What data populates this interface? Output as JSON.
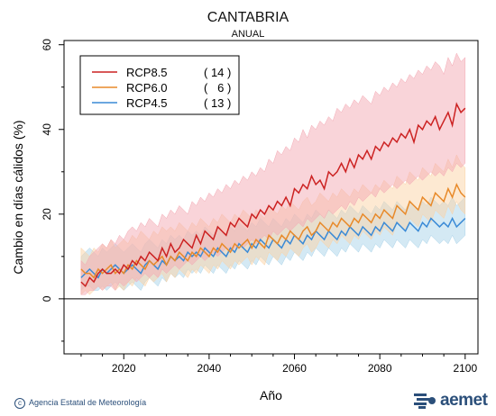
{
  "chart_data": {
    "type": "line",
    "title": "CANTABRIA",
    "subtitle": "ANUAL",
    "xlabel": "Año",
    "ylabel": "Cambio en días cálidos (%)",
    "xlim": [
      2006,
      2103
    ],
    "ylim": [
      -13,
      61
    ],
    "xticks": [
      2020,
      2040,
      2060,
      2080,
      2100
    ],
    "yticks": [
      0,
      20,
      40,
      60
    ],
    "zero_line": true,
    "legend_position": "top-left",
    "x": [
      2010,
      2011,
      2012,
      2013,
      2014,
      2015,
      2016,
      2017,
      2018,
      2019,
      2020,
      2021,
      2022,
      2023,
      2024,
      2025,
      2026,
      2027,
      2028,
      2029,
      2030,
      2031,
      2032,
      2033,
      2034,
      2035,
      2036,
      2037,
      2038,
      2039,
      2040,
      2041,
      2042,
      2043,
      2044,
      2045,
      2046,
      2047,
      2048,
      2049,
      2050,
      2051,
      2052,
      2053,
      2054,
      2055,
      2056,
      2057,
      2058,
      2059,
      2060,
      2061,
      2062,
      2063,
      2064,
      2065,
      2066,
      2067,
      2068,
      2069,
      2070,
      2071,
      2072,
      2073,
      2074,
      2075,
      2076,
      2077,
      2078,
      2079,
      2080,
      2081,
      2082,
      2083,
      2084,
      2085,
      2086,
      2087,
      2088,
      2089,
      2090,
      2091,
      2092,
      2093,
      2094,
      2095,
      2096,
      2097,
      2098,
      2099,
      2100
    ],
    "series": [
      {
        "name": "RCP8.5",
        "count": "( 14 )",
        "color": "#cc2222",
        "band_color": "#f4a9b4",
        "values": [
          4,
          3,
          5,
          4,
          6,
          7,
          6,
          6,
          7,
          6,
          8,
          7,
          9,
          8,
          10,
          9,
          11,
          10,
          9,
          12,
          10,
          13,
          11,
          12,
          14,
          13,
          12,
          15,
          13,
          16,
          15,
          14,
          17,
          16,
          15,
          18,
          17,
          19,
          18,
          17,
          20,
          19,
          21,
          20,
          22,
          21,
          23,
          22,
          24,
          22,
          26,
          25,
          27,
          26,
          29,
          27,
          28,
          26,
          30,
          29,
          30,
          32,
          30,
          33,
          31,
          34,
          33,
          35,
          33,
          36,
          35,
          37,
          36,
          38,
          37,
          39,
          38,
          40,
          37,
          41,
          40,
          42,
          41,
          43,
          40,
          42,
          44,
          41,
          46,
          44,
          45
        ],
        "upper": [
          9,
          8,
          10,
          11,
          12,
          13,
          12,
          14,
          13,
          15,
          14,
          16,
          17,
          16,
          18,
          17,
          19,
          18,
          17,
          20,
          19,
          21,
          20,
          22,
          21,
          20,
          23,
          22,
          24,
          23,
          25,
          24,
          26,
          25,
          27,
          26,
          28,
          27,
          29,
          28,
          30,
          29,
          31,
          30,
          33,
          32,
          35,
          34,
          36,
          35,
          38,
          37,
          40,
          38,
          41,
          40,
          42,
          41,
          43,
          42,
          45,
          44,
          46,
          45,
          47,
          46,
          48,
          47,
          46,
          49,
          48,
          50,
          49,
          51,
          50,
          52,
          51,
          53,
          52,
          54,
          53,
          55,
          54,
          56,
          55,
          53,
          57,
          55,
          58,
          56,
          57
        ],
        "lower": [
          1,
          1,
          2,
          2,
          3,
          2,
          3,
          3,
          2,
          4,
          3,
          4,
          5,
          4,
          5,
          6,
          5,
          6,
          5,
          7,
          6,
          7,
          8,
          7,
          8,
          9,
          8,
          9,
          10,
          9,
          10,
          11,
          10,
          11,
          12,
          11,
          12,
          13,
          12,
          13,
          14,
          13,
          14,
          15,
          14,
          16,
          15,
          16,
          17,
          16,
          17,
          18,
          17,
          19,
          18,
          19,
          20,
          19,
          21,
          20,
          21,
          22,
          21,
          23,
          22,
          24,
          23,
          24,
          25,
          24,
          26,
          25,
          26,
          27,
          26,
          27,
          28,
          27,
          28,
          29,
          28,
          29,
          30,
          29,
          30,
          29,
          31,
          30,
          32,
          31,
          32
        ]
      },
      {
        "name": "RCP6.0",
        "count": "(   6 )",
        "color": "#e88a2a",
        "band_color": "#fbd3a6",
        "values": [
          7,
          6,
          6,
          5,
          7,
          6,
          7,
          8,
          6,
          7,
          6,
          8,
          7,
          9,
          8,
          7,
          9,
          8,
          9,
          10,
          8,
          10,
          9,
          11,
          10,
          9,
          11,
          10,
          12,
          11,
          10,
          12,
          11,
          13,
          12,
          11,
          13,
          12,
          13,
          14,
          12,
          14,
          13,
          12,
          15,
          14,
          13,
          15,
          14,
          16,
          15,
          14,
          16,
          17,
          15,
          16,
          18,
          17,
          16,
          18,
          17,
          19,
          18,
          17,
          19,
          18,
          20,
          19,
          18,
          20,
          19,
          21,
          20,
          19,
          22,
          21,
          20,
          23,
          22,
          21,
          24,
          23,
          22,
          25,
          24,
          23,
          26,
          24,
          27,
          25,
          24
        ],
        "upper": [
          12,
          11,
          10,
          12,
          11,
          13,
          12,
          14,
          12,
          13,
          14,
          13,
          15,
          14,
          16,
          15,
          14,
          16,
          15,
          17,
          16,
          17,
          16,
          18,
          17,
          16,
          18,
          17,
          19,
          18,
          17,
          19,
          18,
          20,
          19,
          18,
          20,
          19,
          21,
          20,
          19,
          21,
          20,
          19,
          22,
          21,
          20,
          22,
          21,
          23,
          22,
          21,
          23,
          24,
          22,
          23,
          25,
          24,
          23,
          25,
          24,
          26,
          25,
          24,
          26,
          25,
          27,
          26,
          25,
          27,
          26,
          28,
          27,
          26,
          29,
          28,
          27,
          30,
          29,
          28,
          31,
          30,
          29,
          32,
          31,
          30,
          33,
          31,
          34,
          32,
          31
        ],
        "lower": [
          1,
          2,
          1,
          2,
          3,
          2,
          3,
          4,
          2,
          3,
          2,
          4,
          3,
          5,
          4,
          3,
          5,
          4,
          5,
          6,
          4,
          6,
          5,
          7,
          6,
          5,
          7,
          6,
          8,
          7,
          6,
          8,
          7,
          9,
          8,
          7,
          9,
          8,
          9,
          10,
          8,
          10,
          9,
          8,
          11,
          10,
          9,
          11,
          10,
          12,
          11,
          10,
          12,
          13,
          11,
          12,
          14,
          13,
          12,
          14,
          13,
          15,
          14,
          13,
          15,
          14,
          16,
          15,
          14,
          16,
          15,
          17,
          16,
          15,
          18,
          17,
          16,
          19,
          18,
          17,
          20,
          19,
          18,
          21,
          20,
          19,
          22,
          20,
          23,
          21,
          20
        ]
      },
      {
        "name": "RCP4.5",
        "count": "( 13 )",
        "color": "#3a8ad6",
        "band_color": "#a9d3ea",
        "values": [
          5,
          6,
          7,
          6,
          5,
          7,
          6,
          7,
          8,
          7,
          6,
          7,
          8,
          7,
          6,
          8,
          9,
          8,
          7,
          9,
          8,
          10,
          9,
          10,
          9,
          11,
          10,
          11,
          10,
          12,
          11,
          10,
          12,
          11,
          10,
          12,
          11,
          13,
          12,
          11,
          13,
          12,
          14,
          13,
          12,
          14,
          13,
          12,
          14,
          13,
          15,
          14,
          13,
          15,
          14,
          16,
          15,
          14,
          16,
          15,
          14,
          16,
          15,
          17,
          16,
          15,
          17,
          16,
          15,
          17,
          16,
          18,
          17,
          16,
          18,
          17,
          16,
          18,
          17,
          16,
          18,
          17,
          19,
          18,
          17,
          18,
          17,
          19,
          17,
          18,
          19
        ],
        "upper": [
          10,
          11,
          12,
          11,
          10,
          12,
          11,
          12,
          13,
          12,
          11,
          12,
          13,
          12,
          11,
          13,
          14,
          13,
          12,
          14,
          13,
          15,
          14,
          15,
          14,
          16,
          15,
          16,
          15,
          17,
          16,
          15,
          17,
          16,
          15,
          17,
          16,
          18,
          17,
          16,
          18,
          17,
          19,
          18,
          17,
          19,
          18,
          17,
          19,
          18,
          20,
          19,
          18,
          20,
          19,
          21,
          20,
          19,
          21,
          20,
          19,
          21,
          20,
          22,
          21,
          20,
          22,
          21,
          20,
          22,
          21,
          23,
          22,
          21,
          23,
          22,
          21,
          23,
          22,
          21,
          23,
          22,
          24,
          23,
          22,
          23,
          22,
          24,
          22,
          23,
          24
        ],
        "lower": [
          2,
          3,
          3,
          2,
          2,
          3,
          2,
          3,
          4,
          3,
          2,
          3,
          4,
          3,
          2,
          4,
          5,
          4,
          3,
          5,
          4,
          6,
          5,
          6,
          5,
          7,
          6,
          7,
          6,
          8,
          7,
          6,
          8,
          7,
          6,
          8,
          7,
          9,
          8,
          7,
          9,
          8,
          10,
          9,
          8,
          10,
          9,
          8,
          10,
          9,
          11,
          10,
          9,
          11,
          10,
          12,
          11,
          10,
          12,
          11,
          10,
          12,
          11,
          13,
          12,
          11,
          13,
          12,
          11,
          13,
          12,
          14,
          13,
          12,
          14,
          13,
          12,
          14,
          13,
          12,
          14,
          13,
          15,
          14,
          13,
          14,
          13,
          15,
          13,
          14,
          15
        ]
      }
    ]
  },
  "footer": {
    "credit": "Agencia Estatal de Meteorología",
    "logo_text": "aemet"
  }
}
